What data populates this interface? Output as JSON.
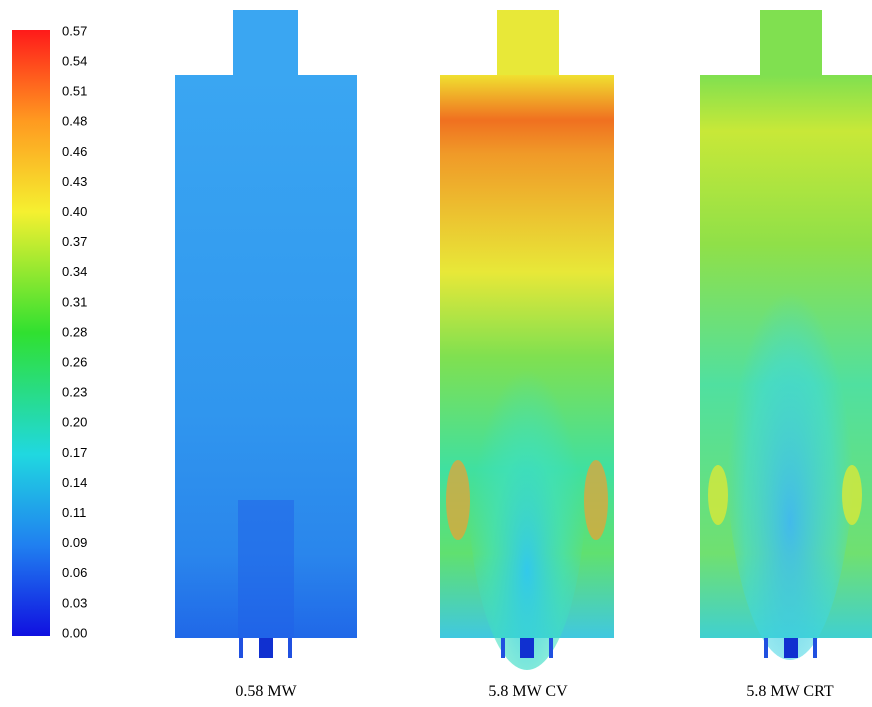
{
  "colorbar": {
    "labels": [
      "0.57",
      "0.54",
      "0.51",
      "0.48",
      "0.46",
      "0.43",
      "0.40",
      "0.37",
      "0.34",
      "0.31",
      "0.28",
      "0.26",
      "0.23",
      "0.20",
      "0.17",
      "0.14",
      "0.11",
      "0.09",
      "0.06",
      "0.03",
      "0.00"
    ]
  },
  "panels": [
    {
      "label": "0.58 MW"
    },
    {
      "label": "5.8 MW CV"
    },
    {
      "label": "5.8 MW CRT"
    }
  ]
}
